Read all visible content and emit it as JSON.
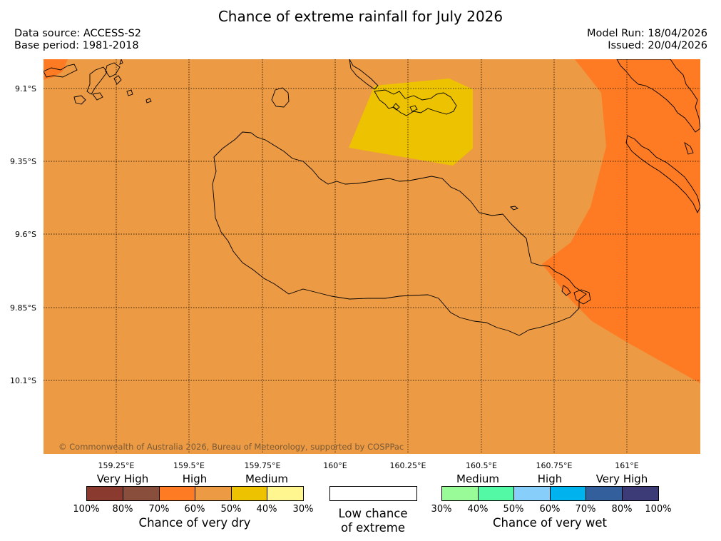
{
  "title": "Chance of extreme rainfall for July 2026",
  "header": {
    "data_source": "Data source: ACCESS-S2",
    "base_period": "Base period: 1981-2018",
    "model_run": "Model Run: 18/04/2026",
    "issued": "Issued: 20/04/2026"
  },
  "map": {
    "copyright": "© Commonwealth of Australia 2026, Bureau of Meteorology, supported by COSPPac",
    "lon_ticks": [
      "159.25°E",
      "159.5°E",
      "159.75°E",
      "160°E",
      "160.25°E",
      "160.5°E",
      "160.75°E",
      "161°E"
    ],
    "lat_ticks": [
      "9.1°S",
      "9.35°S",
      "9.6°S",
      "9.85°S",
      "10.1°S"
    ],
    "colors": {
      "background": "#EC9A44",
      "high_dry": "#FE7B23",
      "medium_dry": "#EDC200",
      "coast": "#000000",
      "grid": "#000000"
    }
  },
  "legend": {
    "dry": {
      "categories": [
        "Very High",
        "High",
        "Medium"
      ],
      "swatches": [
        "#8B3A30",
        "#8A4E3D",
        "#FE7B23",
        "#EC9A44",
        "#EDC200",
        "#FFF68F"
      ],
      "ticks": [
        "100%",
        "80%",
        "70%",
        "60%",
        "50%",
        "40%",
        "30%"
      ],
      "caption": "Chance of very dry"
    },
    "neutral": {
      "swatch": "#FFFFFF",
      "caption_line1": "Low chance",
      "caption_line2": "of extreme"
    },
    "wet": {
      "categories": [
        "Medium",
        "High",
        "Very High"
      ],
      "swatches": [
        "#98FB98",
        "#54F9A6",
        "#87CEFA",
        "#00B2EE",
        "#335F9D",
        "#3D3A78"
      ],
      "ticks": [
        "30%",
        "40%",
        "50%",
        "60%",
        "70%",
        "80%",
        "100%"
      ],
      "caption": "Chance of very wet"
    }
  }
}
